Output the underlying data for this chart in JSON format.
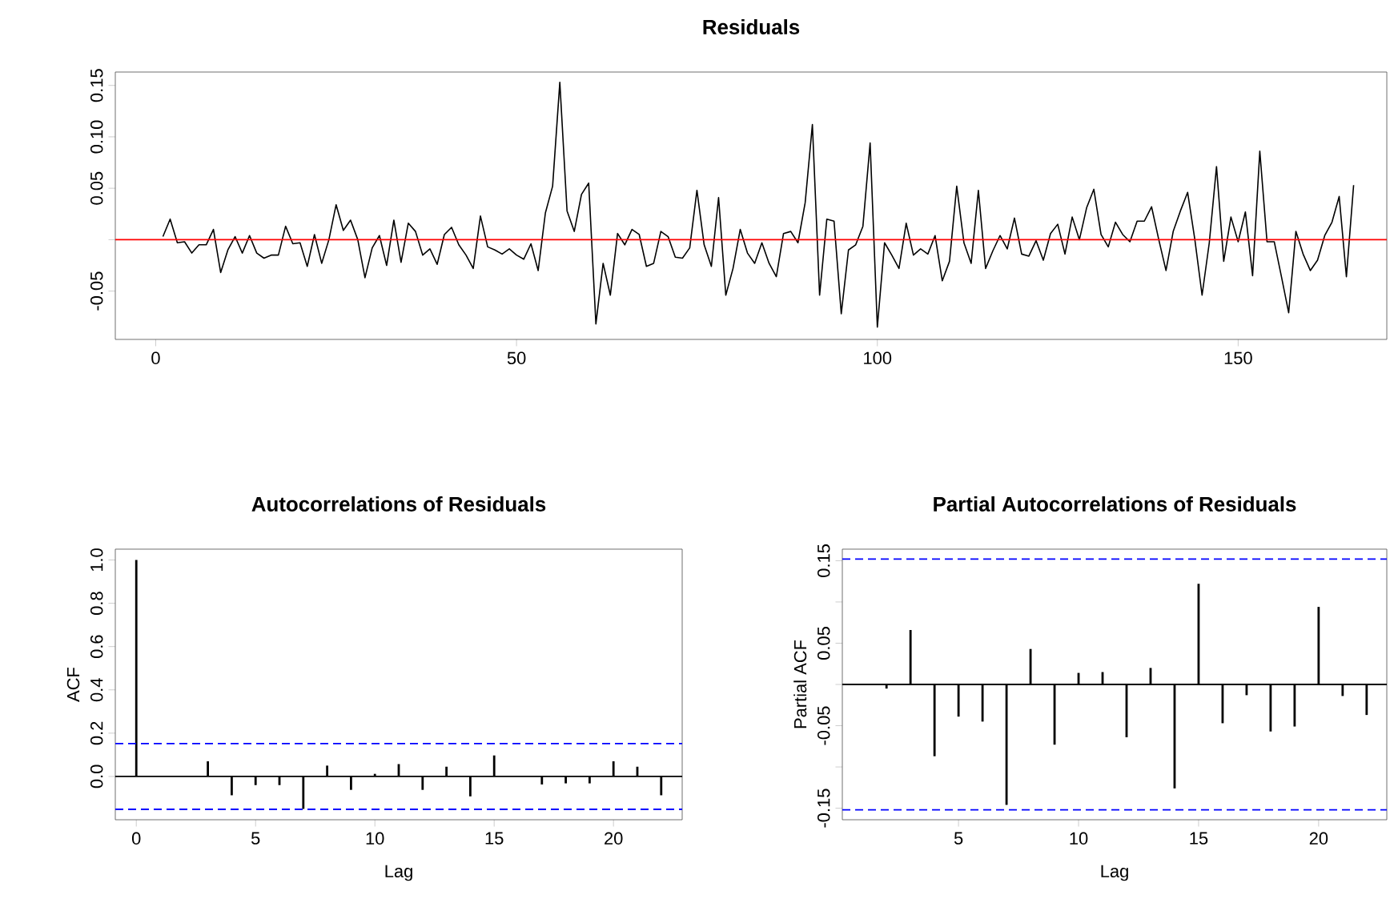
{
  "chart_data": [
    {
      "type": "line",
      "title": "Residuals",
      "color": "#000000",
      "xlim": [
        -5.6,
        170.6
      ],
      "ylim": [
        -0.097,
        0.163
      ],
      "xticks": [
        0,
        50,
        100,
        150
      ],
      "yticks": [
        {
          "value": -0.05,
          "label": "-0.05"
        },
        {
          "value": 0,
          "label": null
        },
        {
          "value": 0.05,
          "label": "0.05"
        },
        {
          "value": 0.1,
          "label": "0.10"
        },
        {
          "value": 0.15,
          "label": "0.15"
        }
      ],
      "ref_lines": [
        {
          "axis": "y",
          "value": 0,
          "color": "#ff0000"
        }
      ],
      "x": [
        1,
        2,
        3,
        4,
        5,
        6,
        7,
        8,
        9,
        10,
        11,
        12,
        13,
        14,
        15,
        16,
        17,
        18,
        19,
        20,
        21,
        22,
        23,
        24,
        25,
        26,
        27,
        28,
        29,
        30,
        31,
        32,
        33,
        34,
        35,
        36,
        37,
        38,
        39,
        40,
        41,
        42,
        43,
        44,
        45,
        46,
        47,
        48,
        49,
        50,
        51,
        52,
        53,
        54,
        55,
        56,
        57,
        58,
        59,
        60,
        61,
        62,
        63,
        64,
        65,
        66,
        67,
        68,
        69,
        70,
        71,
        72,
        73,
        74,
        75,
        76,
        77,
        78,
        79,
        80,
        81,
        82,
        83,
        84,
        85,
        86,
        87,
        88,
        89,
        90,
        91,
        92,
        93,
        94,
        95,
        96,
        97,
        98,
        99,
        100,
        101,
        102,
        103,
        104,
        105,
        106,
        107,
        108,
        109,
        110,
        111,
        112,
        113,
        114,
        115,
        116,
        117,
        118,
        119,
        120,
        121,
        122,
        123,
        124,
        125,
        126,
        127,
        128,
        129,
        130,
        131,
        132,
        133,
        134,
        135,
        136,
        137,
        138,
        139,
        140,
        141,
        142,
        143,
        144,
        145,
        146,
        147,
        148,
        149,
        150,
        151,
        152,
        153,
        154,
        155,
        156,
        157,
        158,
        159,
        160,
        161,
        162,
        163,
        164,
        165,
        166
      ],
      "values": [
        0.003,
        0.02,
        -0.003,
        -0.002,
        -0.013,
        -0.005,
        -0.005,
        0.01,
        -0.032,
        -0.01,
        0.003,
        -0.013,
        0.004,
        -0.013,
        -0.018,
        -0.015,
        -0.015,
        0.013,
        -0.004,
        -0.003,
        -0.026,
        0.005,
        -0.023,
        0.0,
        0.034,
        0.009,
        0.019,
        0.0,
        -0.037,
        -0.008,
        0.004,
        -0.025,
        0.019,
        -0.022,
        0.016,
        0.008,
        -0.015,
        -0.009,
        -0.024,
        0.005,
        0.012,
        -0.005,
        -0.015,
        -0.028,
        0.023,
        -0.007,
        -0.01,
        -0.014,
        -0.009,
        -0.015,
        -0.019,
        -0.004,
        -0.03,
        0.026,
        0.052,
        0.153,
        0.028,
        0.008,
        0.044,
        0.055,
        -0.082,
        -0.023,
        -0.054,
        0.006,
        -0.005,
        0.01,
        0.005,
        -0.026,
        -0.023,
        0.008,
        0.003,
        -0.017,
        -0.018,
        -0.008,
        0.048,
        -0.005,
        -0.026,
        0.041,
        -0.054,
        -0.028,
        0.01,
        -0.013,
        -0.023,
        -0.003,
        -0.023,
        -0.036,
        0.006,
        0.008,
        -0.003,
        0.036,
        0.112,
        -0.054,
        0.02,
        0.018,
        -0.072,
        -0.01,
        -0.005,
        0.013,
        0.094,
        -0.085,
        -0.003,
        -0.015,
        -0.028,
        0.016,
        -0.015,
        -0.009,
        -0.014,
        0.004,
        -0.04,
        -0.021,
        0.052,
        -0.003,
        -0.023,
        0.048,
        -0.028,
        -0.011,
        0.004,
        -0.009,
        0.021,
        -0.014,
        -0.016,
        -0.001,
        -0.02,
        0.006,
        0.015,
        -0.014,
        0.022,
        0.0,
        0.031,
        0.049,
        0.005,
        -0.007,
        0.017,
        0.005,
        -0.002,
        0.018,
        0.018,
        0.032,
        0.0,
        -0.03,
        0.008,
        0.028,
        0.046,
        0.0,
        -0.054,
        -0.003,
        0.071,
        -0.021,
        0.022,
        -0.002,
        0.027,
        -0.035,
        0.086,
        -0.002,
        -0.002,
        -0.036,
        -0.071,
        0.008,
        -0.014,
        -0.03,
        -0.02,
        0.004,
        0.017,
        0.042,
        -0.036,
        0.053
      ]
    },
    {
      "type": "bar",
      "title": "Autocorrelations of Residuals",
      "xlabel": "Lag",
      "ylabel": "ACF",
      "color": "#000000",
      "xlim": [
        -0.88,
        22.88
      ],
      "ylim": [
        -0.2,
        1.05
      ],
      "xticks": [
        0,
        5,
        10,
        15,
        20
      ],
      "yticks": [
        {
          "value": 0,
          "label": "0.0"
        },
        {
          "value": 0.2,
          "label": "0.2"
        },
        {
          "value": 0.4,
          "label": "0.4"
        },
        {
          "value": 0.6,
          "label": "0.6"
        },
        {
          "value": 0.8,
          "label": "0.8"
        },
        {
          "value": 1,
          "label": "1.0"
        }
      ],
      "ref_lines": [
        {
          "axis": "y",
          "value": 0,
          "color": "#000000"
        },
        {
          "axis": "y",
          "value": 0.152,
          "color": "#0000ff",
          "line_style": "dashed"
        },
        {
          "axis": "y",
          "value": -0.152,
          "color": "#0000ff",
          "line_style": "dashed"
        }
      ],
      "x": [
        0,
        1,
        2,
        3,
        4,
        5,
        6,
        7,
        8,
        9,
        10,
        11,
        12,
        13,
        14,
        15,
        16,
        17,
        18,
        19,
        20,
        21,
        22
      ],
      "values": [
        1.0,
        0.0,
        null,
        0.07,
        -0.087,
        -0.04,
        -0.04,
        -0.15,
        0.05,
        -0.062,
        0.012,
        0.057,
        -0.062,
        0.045,
        -0.092,
        0.097,
        0.0,
        -0.037,
        -0.032,
        -0.032,
        0.07,
        0.045,
        -0.087
      ]
    },
    {
      "type": "bar",
      "title": "Partial Autocorrelations of Residuals",
      "xlabel": "Lag",
      "ylabel": "Partial ACF",
      "color": "#000000",
      "xlim": [
        0.16,
        22.84
      ],
      "ylim": [
        -0.164,
        0.164
      ],
      "xticks": [
        5,
        10,
        15,
        20
      ],
      "yticks": [
        {
          "value": -0.15,
          "label": "-0.15"
        },
        {
          "value": -0.1,
          "label": null
        },
        {
          "value": -0.05,
          "label": "-0.05"
        },
        {
          "value": 0,
          "label": null
        },
        {
          "value": 0.05,
          "label": "0.05"
        },
        {
          "value": 0.1,
          "label": null
        },
        {
          "value": 0.15,
          "label": "0.15"
        }
      ],
      "ref_lines": [
        {
          "axis": "y",
          "value": 0,
          "color": "#000000"
        },
        {
          "axis": "y",
          "value": 0.152,
          "color": "#0000ff",
          "line_style": "dashed"
        },
        {
          "axis": "y",
          "value": -0.152,
          "color": "#0000ff",
          "line_style": "dashed"
        }
      ],
      "x": [
        1,
        2,
        3,
        4,
        5,
        6,
        7,
        8,
        9,
        10,
        11,
        12,
        13,
        14,
        15,
        16,
        17,
        18,
        19,
        20,
        21,
        22
      ],
      "values": [
        0.0,
        -0.005,
        0.066,
        -0.087,
        -0.039,
        -0.045,
        -0.146,
        0.043,
        -0.073,
        0.014,
        0.015,
        -0.064,
        0.02,
        -0.126,
        0.122,
        -0.047,
        -0.013,
        -0.057,
        -0.051,
        0.094,
        -0.014,
        -0.037
      ]
    }
  ]
}
